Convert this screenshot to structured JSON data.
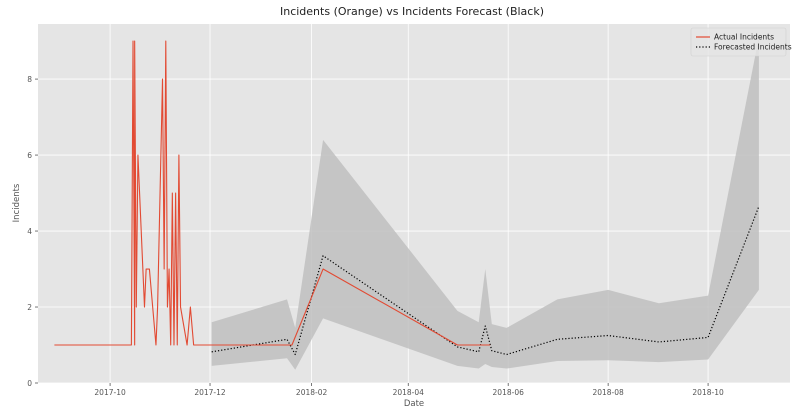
{
  "chart_data": {
    "type": "line",
    "title": "Incidents (Orange) vs Incidents Forecast (Black)",
    "xlabel": "Date",
    "ylabel": "Incidents",
    "xlim": [
      "2017-08-18",
      "2018-11-20"
    ],
    "ylim": [
      0,
      9.45
    ],
    "x_ticks": [
      "2017-10",
      "2017-12",
      "2018-02",
      "2018-04",
      "2018-06",
      "2018-08",
      "2018-10"
    ],
    "y_ticks": [
      0,
      2,
      4,
      6,
      8
    ],
    "grid": true,
    "legend_position": "top-right",
    "colors": {
      "background": "#e5e5e5",
      "grid": "#ffffff",
      "actual": "#e24a33",
      "forecast": "#000000",
      "band": "#c0c0c0"
    },
    "series": [
      {
        "name": "Actual Incidents",
        "style": "solid",
        "points": [
          [
            "2017-08-28",
            1
          ],
          [
            "2017-10-10",
            1
          ],
          [
            "2017-10-14",
            1
          ],
          [
            "2017-10-15",
            9
          ],
          [
            "2017-10-16",
            1
          ],
          [
            "2017-10-16",
            9
          ],
          [
            "2017-10-17",
            2
          ],
          [
            "2017-10-18",
            6
          ],
          [
            "2017-10-20",
            4
          ],
          [
            "2017-10-22",
            2
          ],
          [
            "2017-10-23",
            3
          ],
          [
            "2017-10-25",
            3
          ],
          [
            "2017-10-27",
            2
          ],
          [
            "2017-10-29",
            1
          ],
          [
            "2017-10-30",
            2
          ],
          [
            "2017-11-02",
            8
          ],
          [
            "2017-11-03",
            3
          ],
          [
            "2017-11-04",
            9
          ],
          [
            "2017-11-05",
            2
          ],
          [
            "2017-11-06",
            3
          ],
          [
            "2017-11-07",
            1
          ],
          [
            "2017-11-08",
            5
          ],
          [
            "2017-11-09",
            1
          ],
          [
            "2017-11-10",
            5
          ],
          [
            "2017-11-11",
            1
          ],
          [
            "2017-11-12",
            6
          ],
          [
            "2017-11-13",
            2
          ],
          [
            "2017-11-15",
            1.5
          ],
          [
            "2017-11-17",
            1
          ],
          [
            "2017-11-19",
            2
          ],
          [
            "2017-11-21",
            1
          ],
          [
            "2017-12-02",
            1
          ],
          [
            "2018-01-20",
            1
          ],
          [
            "2018-02-08",
            3
          ],
          [
            "2018-05-01",
            1
          ],
          [
            "2018-05-21",
            1
          ]
        ]
      },
      {
        "name": "Forecasted Incidents",
        "style": "dotted",
        "points": [
          [
            "2017-12-02",
            0.82
          ],
          [
            "2018-01-17",
            1.15
          ],
          [
            "2018-01-22",
            0.75
          ],
          [
            "2018-02-08",
            3.35
          ],
          [
            "2018-05-01",
            0.95
          ],
          [
            "2018-05-14",
            0.82
          ],
          [
            "2018-05-18",
            1.5
          ],
          [
            "2018-05-22",
            0.85
          ],
          [
            "2018-05-31",
            0.75
          ],
          [
            "2018-07-01",
            1.15
          ],
          [
            "2018-08-01",
            1.25
          ],
          [
            "2018-09-01",
            1.08
          ],
          [
            "2018-10-01",
            1.2
          ],
          [
            "2018-11-01",
            4.65
          ]
        ]
      }
    ],
    "confidence_band": {
      "x": [
        "2017-12-02",
        "2018-01-17",
        "2018-01-22",
        "2018-02-08",
        "2018-05-01",
        "2018-05-14",
        "2018-05-18",
        "2018-05-22",
        "2018-05-31",
        "2018-07-01",
        "2018-08-01",
        "2018-09-01",
        "2018-10-01",
        "2018-11-01"
      ],
      "upper": [
        1.6,
        2.2,
        1.45,
        6.4,
        1.9,
        1.6,
        3.0,
        1.55,
        1.45,
        2.2,
        2.45,
        2.1,
        2.3,
        9.1
      ],
      "lower": [
        0.45,
        0.65,
        0.35,
        1.7,
        0.45,
        0.38,
        0.5,
        0.42,
        0.38,
        0.58,
        0.6,
        0.55,
        0.62,
        2.45
      ]
    }
  }
}
